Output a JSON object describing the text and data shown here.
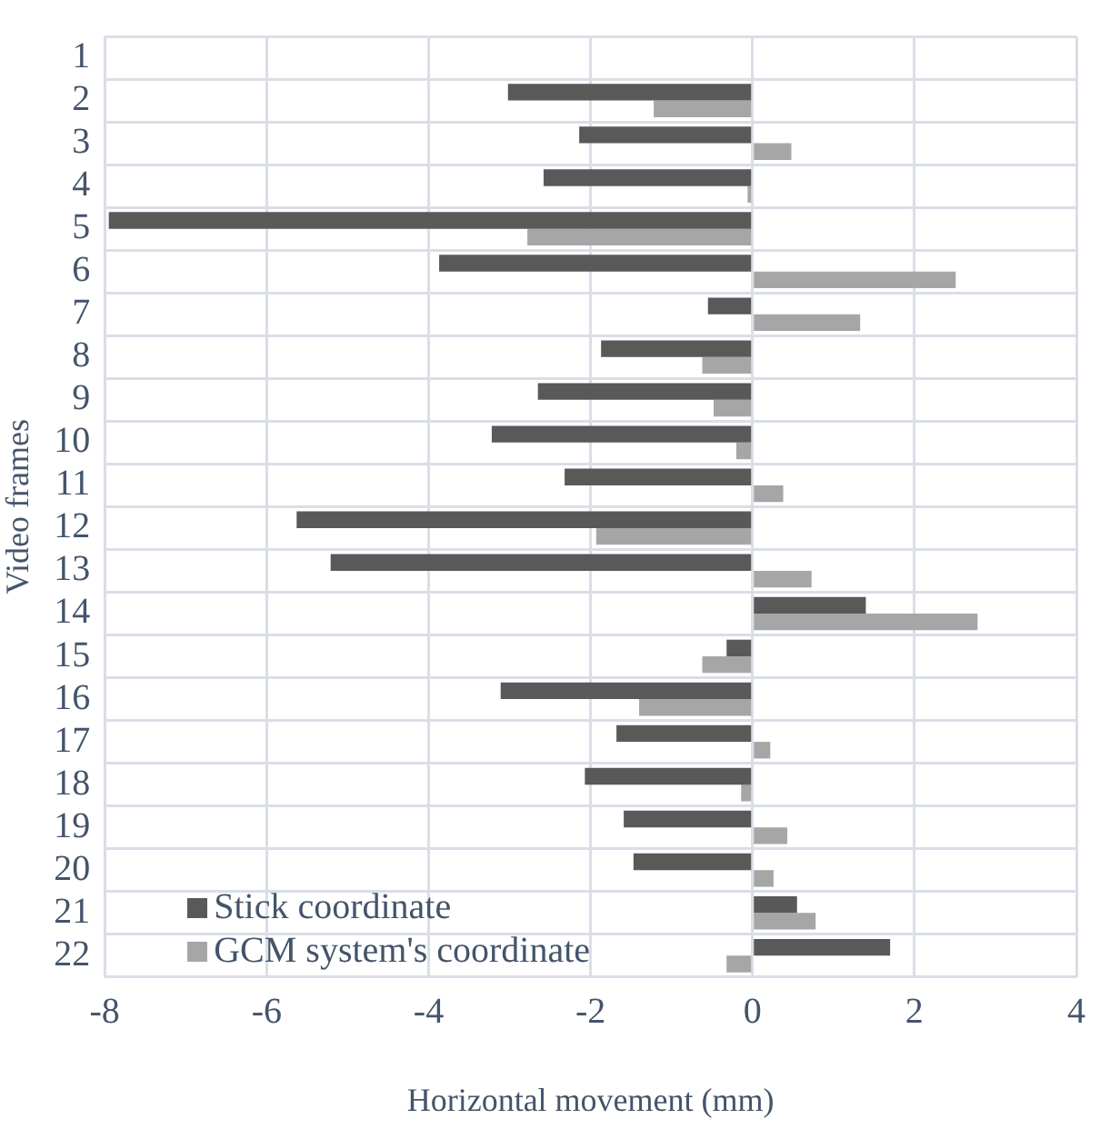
{
  "chart_data": {
    "type": "bar",
    "orientation": "horizontal",
    "xlabel": "Horizontal movement (mm)",
    "ylabel": "Video frames",
    "categories": [
      "1",
      "2",
      "3",
      "4",
      "5",
      "6",
      "7",
      "8",
      "9",
      "10",
      "11",
      "12",
      "13",
      "14",
      "15",
      "16",
      "17",
      "18",
      "19",
      "20",
      "21",
      "22"
    ],
    "series": [
      {
        "name": "Stick coordinate",
        "color": "#595959",
        "values": [
          null,
          -3.02,
          -2.14,
          -2.58,
          -7.95,
          -3.87,
          -0.55,
          -1.87,
          -2.65,
          -3.22,
          -2.32,
          -5.63,
          -5.21,
          1.4,
          -0.32,
          -3.11,
          -1.68,
          -2.07,
          -1.59,
          -1.47,
          0.55,
          1.7
        ]
      },
      {
        "name": "GCM system's coordinate",
        "color": "#a6a6a6",
        "values": [
          null,
          -1.22,
          0.48,
          -0.06,
          -2.78,
          2.51,
          1.33,
          -0.62,
          -0.48,
          -0.2,
          0.38,
          -1.93,
          0.73,
          2.78,
          -0.62,
          -1.4,
          0.22,
          -0.14,
          0.43,
          0.26,
          0.78,
          -0.32
        ]
      }
    ],
    "xlim": [
      -8,
      4
    ],
    "xticks": [
      -8,
      -6,
      -4,
      -2,
      0,
      2,
      4
    ],
    "grid": true,
    "legend": "bottom left"
  }
}
